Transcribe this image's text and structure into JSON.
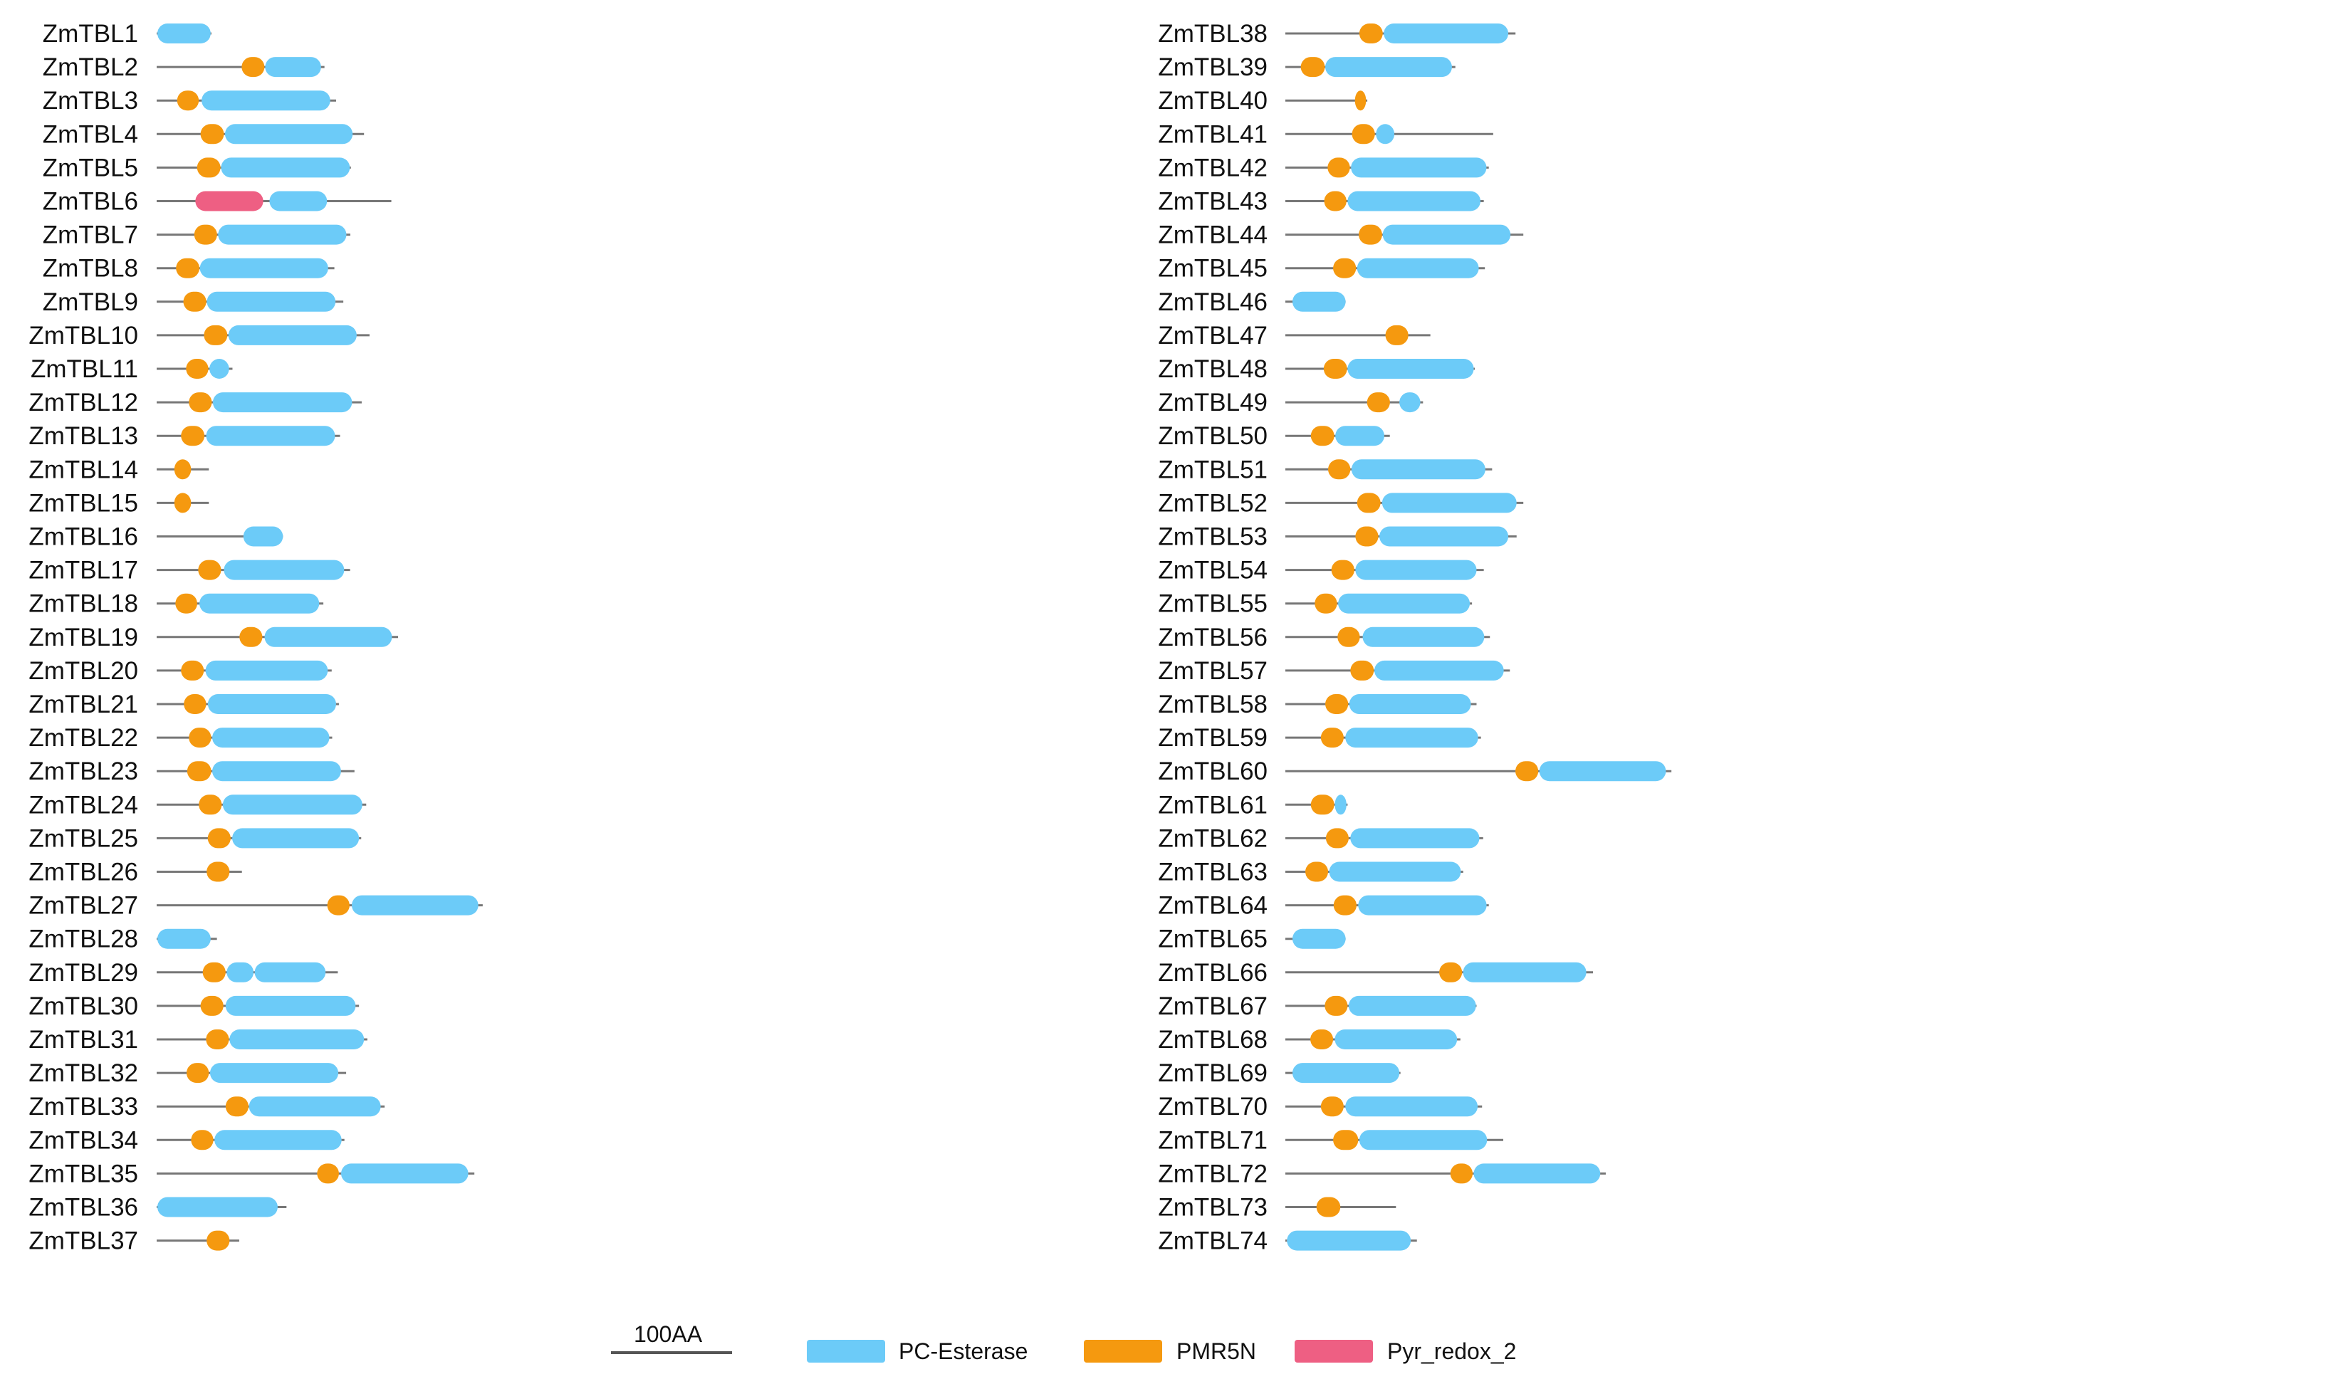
{
  "legend": {
    "scale_label": "100AA",
    "items": [
      {
        "name": "PC-Esterase",
        "color": "#6CCBF8"
      },
      {
        "name": "PMR5N",
        "color": "#F5990F"
      },
      {
        "name": "Pyr_redox_2",
        "color": "#EE5F83"
      }
    ]
  },
  "colors": {
    "PC-Esterase": "#6CCBF8",
    "PMR5N": "#F5990F",
    "Pyr_redox_2": "#EE5F83",
    "line": "#777777"
  },
  "scale_bar_aa": 100,
  "proteins": [
    {
      "name": "ZmTBL1",
      "length": 447,
      "domains": [
        {
          "type": "PC-Esterase",
          "start": 6,
          "end": 441
        }
      ]
    },
    {
      "name": "ZmTBL2",
      "length": 1370,
      "domains": [
        {
          "type": "PMR5N",
          "start": 694,
          "end": 880
        },
        {
          "type": "PC-Esterase",
          "start": 886,
          "end": 1342
        }
      ]
    },
    {
      "name": "ZmTBL3",
      "length": 1465,
      "domains": [
        {
          "type": "PMR5N",
          "start": 167,
          "end": 344
        },
        {
          "type": "PC-Esterase",
          "start": 367,
          "end": 1417
        }
      ]
    },
    {
      "name": "ZmTBL4",
      "length": 1693,
      "domains": [
        {
          "type": "PMR5N",
          "start": 358,
          "end": 549
        },
        {
          "type": "PC-Esterase",
          "start": 558,
          "end": 1600
        }
      ]
    },
    {
      "name": "ZmTBL5",
      "length": 1586,
      "domains": [
        {
          "type": "PMR5N",
          "start": 330,
          "end": 521
        },
        {
          "type": "PC-Esterase",
          "start": 526,
          "end": 1577
        }
      ]
    },
    {
      "name": "ZmTBL6",
      "length": 1916,
      "domains": [
        {
          "type": "Pyr_redox_2",
          "start": 316,
          "end": 870
        },
        {
          "type": "PC-Esterase",
          "start": 921,
          "end": 1391
        }
      ]
    },
    {
      "name": "ZmTBL7",
      "length": 1581,
      "domains": [
        {
          "type": "PMR5N",
          "start": 307,
          "end": 493
        },
        {
          "type": "PC-Esterase",
          "start": 502,
          "end": 1549
        }
      ]
    },
    {
      "name": "ZmTBL8",
      "length": 1451,
      "domains": [
        {
          "type": "PMR5N",
          "start": 158,
          "end": 349
        },
        {
          "type": "PC-Esterase",
          "start": 353,
          "end": 1400
        }
      ]
    },
    {
      "name": "ZmTBL9",
      "length": 1524,
      "domains": [
        {
          "type": "PMR5N",
          "start": 218,
          "end": 405
        },
        {
          "type": "PC-Esterase",
          "start": 410,
          "end": 1460
        }
      ]
    },
    {
      "name": "ZmTBL10",
      "length": 1738,
      "domains": [
        {
          "type": "PMR5N",
          "start": 386,
          "end": 577
        },
        {
          "type": "PC-Esterase",
          "start": 586,
          "end": 1633
        }
      ]
    },
    {
      "name": "ZmTBL11",
      "length": 619,
      "domains": [
        {
          "type": "PMR5N",
          "start": 240,
          "end": 422
        },
        {
          "type": "PC-Esterase",
          "start": 431,
          "end": 591
        }
      ]
    },
    {
      "name": "ZmTBL12",
      "length": 1674,
      "domains": [
        {
          "type": "PMR5N",
          "start": 263,
          "end": 450
        },
        {
          "type": "PC-Esterase",
          "start": 459,
          "end": 1595
        }
      ]
    },
    {
      "name": "ZmTBL13",
      "length": 1497,
      "domains": [
        {
          "type": "PMR5N",
          "start": 199,
          "end": 390
        },
        {
          "type": "PC-Esterase",
          "start": 404,
          "end": 1456
        }
      ]
    },
    {
      "name": "ZmTBL14",
      "length": 426,
      "domains": [
        {
          "type": "PMR5N",
          "start": 144,
          "end": 281
        }
      ]
    },
    {
      "name": "ZmTBL15",
      "length": 426,
      "domains": [
        {
          "type": "PMR5N",
          "start": 144,
          "end": 281
        }
      ]
    },
    {
      "name": "ZmTBL16",
      "length": 1031,
      "domains": [
        {
          "type": "PC-Esterase",
          "start": 708,
          "end": 1031
        }
      ]
    },
    {
      "name": "ZmTBL17",
      "length": 1579,
      "domains": [
        {
          "type": "PMR5N",
          "start": 339,
          "end": 526
        },
        {
          "type": "PC-Esterase",
          "start": 549,
          "end": 1531
        }
      ]
    },
    {
      "name": "ZmTBL18",
      "length": 1361,
      "domains": [
        {
          "type": "PMR5N",
          "start": 153,
          "end": 331
        },
        {
          "type": "PC-Esterase",
          "start": 349,
          "end": 1327
        }
      ]
    },
    {
      "name": "ZmTBL19",
      "length": 1971,
      "domains": [
        {
          "type": "PMR5N",
          "start": 676,
          "end": 863
        },
        {
          "type": "PC-Esterase",
          "start": 881,
          "end": 1921
        }
      ]
    },
    {
      "name": "ZmTBL20",
      "length": 1429,
      "domains": [
        {
          "type": "PMR5N",
          "start": 199,
          "end": 385
        },
        {
          "type": "PC-Esterase",
          "start": 399,
          "end": 1397
        }
      ]
    },
    {
      "name": "ZmTBL21",
      "length": 1488,
      "domains": [
        {
          "type": "PMR5N",
          "start": 222,
          "end": 404
        },
        {
          "type": "PC-Esterase",
          "start": 418,
          "end": 1465
        }
      ]
    },
    {
      "name": "ZmTBL22",
      "length": 1433,
      "domains": [
        {
          "type": "PMR5N",
          "start": 263,
          "end": 445
        },
        {
          "type": "PC-Esterase",
          "start": 454,
          "end": 1410
        }
      ]
    },
    {
      "name": "ZmTBL23",
      "length": 1615,
      "domains": [
        {
          "type": "PMR5N",
          "start": 249,
          "end": 445
        },
        {
          "type": "PC-Esterase",
          "start": 454,
          "end": 1505
        }
      ]
    },
    {
      "name": "ZmTBL24",
      "length": 1711,
      "domains": [
        {
          "type": "PMR5N",
          "start": 344,
          "end": 531
        },
        {
          "type": "PC-Esterase",
          "start": 540,
          "end": 1679
        }
      ]
    },
    {
      "name": "ZmTBL25",
      "length": 1670,
      "domains": [
        {
          "type": "PMR5N",
          "start": 417,
          "end": 604
        },
        {
          "type": "PC-Esterase",
          "start": 617,
          "end": 1652
        }
      ]
    },
    {
      "name": "ZmTBL26",
      "length": 696,
      "domains": [
        {
          "type": "PMR5N",
          "start": 408,
          "end": 595
        }
      ]
    },
    {
      "name": "ZmTBL27",
      "length": 2662,
      "domains": [
        {
          "type": "PMR5N",
          "start": 1393,
          "end": 1575
        },
        {
          "type": "PC-Esterase",
          "start": 1593,
          "end": 2626
        }
      ]
    },
    {
      "name": "ZmTBL28",
      "length": 492,
      "domains": [
        {
          "type": "PC-Esterase",
          "start": 6,
          "end": 441
        }
      ]
    },
    {
      "name": "ZmTBL29",
      "length": 1479,
      "domains": [
        {
          "type": "PMR5N",
          "start": 376,
          "end": 563
        },
        {
          "type": "PC-Esterase",
          "start": 572,
          "end": 791
        },
        {
          "type": "PC-Esterase",
          "start": 800,
          "end": 1379
        }
      ]
    },
    {
      "name": "ZmTBL30",
      "length": 1652,
      "domains": [
        {
          "type": "PMR5N",
          "start": 358,
          "end": 545
        },
        {
          "type": "PC-Esterase",
          "start": 563,
          "end": 1624
        }
      ]
    },
    {
      "name": "ZmTBL31",
      "length": 1720,
      "domains": [
        {
          "type": "PMR5N",
          "start": 403,
          "end": 590
        },
        {
          "type": "PC-Esterase",
          "start": 595,
          "end": 1693
        }
      ]
    },
    {
      "name": "ZmTBL32",
      "length": 1547,
      "domains": [
        {
          "type": "PMR5N",
          "start": 244,
          "end": 426
        },
        {
          "type": "PC-Esterase",
          "start": 436,
          "end": 1483
        }
      ]
    },
    {
      "name": "ZmTBL33",
      "length": 1861,
      "domains": [
        {
          "type": "PMR5N",
          "start": 563,
          "end": 750
        },
        {
          "type": "PC-Esterase",
          "start": 754,
          "end": 1829
        }
      ]
    },
    {
      "name": "ZmTBL34",
      "length": 1533,
      "domains": [
        {
          "type": "PMR5N",
          "start": 281,
          "end": 463
        },
        {
          "type": "PC-Esterase",
          "start": 472,
          "end": 1510
        }
      ]
    },
    {
      "name": "ZmTBL35",
      "length": 2594,
      "domains": [
        {
          "type": "PMR5N",
          "start": 1310,
          "end": 1488
        },
        {
          "type": "PC-Esterase",
          "start": 1506,
          "end": 2544
        }
      ]
    },
    {
      "name": "ZmTBL36",
      "length": 1060,
      "domains": [
        {
          "type": "PC-Esterase",
          "start": 6,
          "end": 988
        }
      ]
    },
    {
      "name": "ZmTBL37",
      "length": 674,
      "domains": [
        {
          "type": "PMR5N",
          "start": 408,
          "end": 595
        }
      ]
    },
    {
      "name": "ZmTBL38",
      "length": 1879,
      "domains": [
        {
          "type": "PMR5N",
          "start": 604,
          "end": 795
        },
        {
          "type": "PC-Esterase",
          "start": 804,
          "end": 1820
        }
      ]
    },
    {
      "name": "ZmTBL39",
      "length": 1388,
      "domains": [
        {
          "type": "PMR5N",
          "start": 126,
          "end": 322
        },
        {
          "type": "PC-Esterase",
          "start": 326,
          "end": 1360
        }
      ]
    },
    {
      "name": "ZmTBL40",
      "length": 669,
      "domains": [
        {
          "type": "PMR5N",
          "start": 568,
          "end": 659
        }
      ]
    },
    {
      "name": "ZmTBL41",
      "length": 1697,
      "domains": [
        {
          "type": "PMR5N",
          "start": 544,
          "end": 731
        },
        {
          "type": "PC-Esterase",
          "start": 740,
          "end": 890
        }
      ]
    },
    {
      "name": "ZmTBL42",
      "length": 1661,
      "domains": [
        {
          "type": "PMR5N",
          "start": 345,
          "end": 527
        },
        {
          "type": "PC-Esterase",
          "start": 536,
          "end": 1642
        }
      ]
    },
    {
      "name": "ZmTBL43",
      "length": 1620,
      "domains": [
        {
          "type": "PMR5N",
          "start": 317,
          "end": 499
        },
        {
          "type": "PC-Esterase",
          "start": 508,
          "end": 1593
        }
      ]
    },
    {
      "name": "ZmTBL44",
      "length": 1943,
      "domains": [
        {
          "type": "PMR5N",
          "start": 599,
          "end": 790
        },
        {
          "type": "PC-Esterase",
          "start": 795,
          "end": 1838
        }
      ]
    },
    {
      "name": "ZmTBL45",
      "length": 1629,
      "domains": [
        {
          "type": "PMR5N",
          "start": 390,
          "end": 577
        },
        {
          "type": "PC-Esterase",
          "start": 586,
          "end": 1579
        }
      ]
    },
    {
      "name": "ZmTBL46",
      "length": 492,
      "domains": [
        {
          "type": "PC-Esterase",
          "start": 58,
          "end": 492
        }
      ]
    },
    {
      "name": "ZmTBL47",
      "length": 1184,
      "domains": [
        {
          "type": "PMR5N",
          "start": 817,
          "end": 1004
        }
      ]
    },
    {
      "name": "ZmTBL48",
      "length": 1547,
      "domains": [
        {
          "type": "PMR5N",
          "start": 313,
          "end": 504
        },
        {
          "type": "PC-Esterase",
          "start": 508,
          "end": 1538
        }
      ]
    },
    {
      "name": "ZmTBL49",
      "length": 1124,
      "domains": [
        {
          "type": "PMR5N",
          "start": 667,
          "end": 854
        },
        {
          "type": "PC-Esterase",
          "start": 931,
          "end": 1102
        }
      ]
    },
    {
      "name": "ZmTBL50",
      "length": 853,
      "domains": [
        {
          "type": "PMR5N",
          "start": 208,
          "end": 399
        },
        {
          "type": "PC-Esterase",
          "start": 408,
          "end": 808
        }
      ]
    },
    {
      "name": "ZmTBL51",
      "length": 1688,
      "domains": [
        {
          "type": "PMR5N",
          "start": 349,
          "end": 531
        },
        {
          "type": "PC-Esterase",
          "start": 540,
          "end": 1633
        }
      ]
    },
    {
      "name": "ZmTBL52",
      "length": 1943,
      "domains": [
        {
          "type": "PMR5N",
          "start": 586,
          "end": 777
        },
        {
          "type": "PC-Esterase",
          "start": 790,
          "end": 1888
        }
      ]
    },
    {
      "name": "ZmTBL53",
      "length": 1888,
      "domains": [
        {
          "type": "PMR5N",
          "start": 572,
          "end": 759
        },
        {
          "type": "PC-Esterase",
          "start": 768,
          "end": 1820
        }
      ]
    },
    {
      "name": "ZmTBL54",
      "length": 1620,
      "domains": [
        {
          "type": "PMR5N",
          "start": 376,
          "end": 563
        },
        {
          "type": "PC-Esterase",
          "start": 572,
          "end": 1561
        }
      ]
    },
    {
      "name": "ZmTBL55",
      "length": 1524,
      "domains": [
        {
          "type": "PMR5N",
          "start": 240,
          "end": 422
        },
        {
          "type": "PC-Esterase",
          "start": 431,
          "end": 1506
        }
      ]
    },
    {
      "name": "ZmTBL56",
      "length": 1670,
      "domains": [
        {
          "type": "PMR5N",
          "start": 426,
          "end": 608
        },
        {
          "type": "PC-Esterase",
          "start": 631,
          "end": 1624
        }
      ]
    },
    {
      "name": "ZmTBL57",
      "length": 1833,
      "domains": [
        {
          "type": "PMR5N",
          "start": 531,
          "end": 722
        },
        {
          "type": "PC-Esterase",
          "start": 727,
          "end": 1783
        }
      ]
    },
    {
      "name": "ZmTBL58",
      "length": 1561,
      "domains": [
        {
          "type": "PMR5N",
          "start": 326,
          "end": 513
        },
        {
          "type": "PC-Esterase",
          "start": 522,
          "end": 1515
        }
      ]
    },
    {
      "name": "ZmTBL59",
      "length": 1597,
      "domains": [
        {
          "type": "PMR5N",
          "start": 290,
          "end": 476
        },
        {
          "type": "PC-Esterase",
          "start": 490,
          "end": 1574
        }
      ]
    },
    {
      "name": "ZmTBL60",
      "length": 3152,
      "domains": [
        {
          "type": "PMR5N",
          "start": 1878,
          "end": 2065
        },
        {
          "type": "PC-Esterase",
          "start": 2074,
          "end": 3107
        }
      ]
    },
    {
      "name": "ZmTBL61",
      "length": 508,
      "domains": [
        {
          "type": "PMR5N",
          "start": 208,
          "end": 399
        },
        {
          "type": "PC-Esterase",
          "start": 404,
          "end": 499
        }
      ]
    },
    {
      "name": "ZmTBL62",
      "length": 1615,
      "domains": [
        {
          "type": "PMR5N",
          "start": 331,
          "end": 517
        },
        {
          "type": "PC-Esterase",
          "start": 531,
          "end": 1584
        }
      ]
    },
    {
      "name": "ZmTBL63",
      "length": 1452,
      "domains": [
        {
          "type": "PMR5N",
          "start": 163,
          "end": 349
        },
        {
          "type": "PC-Esterase",
          "start": 358,
          "end": 1433
        }
      ]
    },
    {
      "name": "ZmTBL64",
      "length": 1661,
      "domains": [
        {
          "type": "PMR5N",
          "start": 394,
          "end": 581
        },
        {
          "type": "PC-Esterase",
          "start": 595,
          "end": 1643
        }
      ]
    },
    {
      "name": "ZmTBL65",
      "length": 492,
      "domains": [
        {
          "type": "PC-Esterase",
          "start": 58,
          "end": 492
        }
      ]
    },
    {
      "name": "ZmTBL66",
      "length": 2512,
      "domains": [
        {
          "type": "PMR5N",
          "start": 1256,
          "end": 1443
        },
        {
          "type": "PC-Esterase",
          "start": 1451,
          "end": 2457
        }
      ]
    },
    {
      "name": "ZmTBL67",
      "length": 1561,
      "domains": [
        {
          "type": "PMR5N",
          "start": 322,
          "end": 508
        },
        {
          "type": "PC-Esterase",
          "start": 517,
          "end": 1556
        }
      ]
    },
    {
      "name": "ZmTBL68",
      "length": 1429,
      "domains": [
        {
          "type": "PMR5N",
          "start": 204,
          "end": 390
        },
        {
          "type": "PC-Esterase",
          "start": 404,
          "end": 1402
        }
      ]
    },
    {
      "name": "ZmTBL69",
      "length": 940,
      "domains": [
        {
          "type": "PC-Esterase",
          "start": 58,
          "end": 931
        }
      ]
    },
    {
      "name": "ZmTBL70",
      "length": 1606,
      "domains": [
        {
          "type": "PMR5N",
          "start": 290,
          "end": 476
        },
        {
          "type": "PC-Esterase",
          "start": 490,
          "end": 1570
        }
      ]
    },
    {
      "name": "ZmTBL71",
      "length": 1779,
      "domains": [
        {
          "type": "PMR5N",
          "start": 390,
          "end": 595
        },
        {
          "type": "PC-Esterase",
          "start": 604,
          "end": 1647
        }
      ]
    },
    {
      "name": "ZmTBL72",
      "length": 2616,
      "domains": [
        {
          "type": "PMR5N",
          "start": 1347,
          "end": 1529
        },
        {
          "type": "PC-Esterase",
          "start": 1538,
          "end": 2571
        }
      ]
    },
    {
      "name": "ZmTBL73",
      "length": 903,
      "domains": [
        {
          "type": "PMR5N",
          "start": 254,
          "end": 449
        }
      ]
    },
    {
      "name": "ZmTBL74",
      "length": 1074,
      "domains": [
        {
          "type": "PC-Esterase",
          "start": 13,
          "end": 1024
        }
      ]
    }
  ]
}
